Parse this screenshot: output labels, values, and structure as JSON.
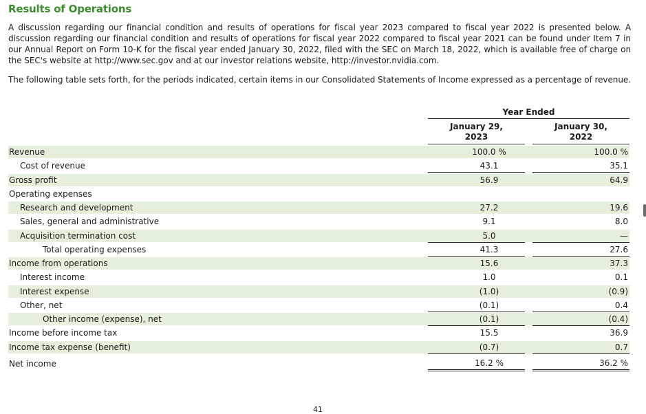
{
  "title": "Results of Operations",
  "para1": "A discussion regarding our financial condition and results of operations for fiscal year 2023 compared to fiscal year 2022 is presented below. A discussion regarding our financial condition and results of operations for fiscal year 2022 compared to fiscal year 2021 can be found under Item 7 in our Annual Report on Form 10-K for the fiscal year ended January 30, 2022, filed with the SEC on March 18, 2022, which is available free of charge on the SEC's website at http://www.sec.gov and at our investor relations website, http://investor.nvidia.com.",
  "para2": "The following table sets forth, for the periods indicated, certain items in our Consolidated Statements of Income expressed as a percentage of revenue.",
  "table": {
    "year_header": "Year Ended",
    "col1": "January 29,\n2023",
    "col2": "January 30,\n2022",
    "rows": [
      {
        "label": "Revenue",
        "v1": "100.0 %",
        "v2": "100.0 %"
      },
      {
        "label": "Cost of revenue",
        "v1": "43.1",
        "v2": "35.1"
      },
      {
        "label": "Gross profit",
        "v1": "56.9",
        "v2": "64.9"
      },
      {
        "label": "Operating expenses",
        "v1": "",
        "v2": ""
      },
      {
        "label": "Research and development",
        "v1": "27.2",
        "v2": "19.6"
      },
      {
        "label": "Sales, general and administrative",
        "v1": "9.1",
        "v2": "8.0"
      },
      {
        "label": "Acquisition termination cost",
        "v1": "5.0",
        "v2": "—"
      },
      {
        "label": "Total operating expenses",
        "v1": "41.3",
        "v2": "27.6"
      },
      {
        "label": "Income from operations",
        "v1": "15.6",
        "v2": "37.3"
      },
      {
        "label": "Interest income",
        "v1": "1.0",
        "v2": "0.1"
      },
      {
        "label": "Interest expense",
        "v1": "(1.0)",
        "v2": "(0.9)"
      },
      {
        "label": "Other, net",
        "v1": "(0.1)",
        "v2": "0.4"
      },
      {
        "label": "Other income (expense), net",
        "v1": "(0.1)",
        "v2": "(0.4)"
      },
      {
        "label": "Income before income tax",
        "v1": "15.5",
        "v2": "36.9"
      },
      {
        "label": "Income tax expense (benefit)",
        "v1": "(0.7)",
        "v2": "0.7"
      },
      {
        "label": "Net income",
        "v1": "16.2 %",
        "v2": "36.2 %"
      }
    ]
  },
  "page_number": "41"
}
